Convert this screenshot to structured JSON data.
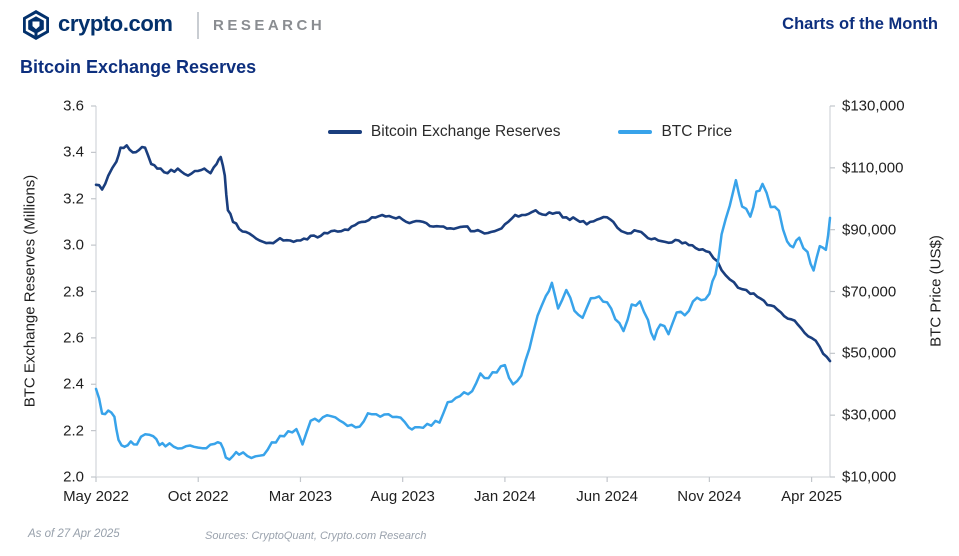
{
  "header": {
    "brand": "crypto.com",
    "brand_suffix": "RESEARCH",
    "right_label": "Charts of the Month"
  },
  "title": "Bitcoin Exchange Reserves",
  "footer": {
    "as_of": "As of 27 Apr 2025",
    "sources": "Sources: CryptoQuant, Crypto.com Research"
  },
  "colors": {
    "brand_navy": "#03316c",
    "title_blue": "#0d2f7e",
    "reserves_line": "#1a3e7e",
    "price_line": "#38a3ea",
    "axis_line": "#d6d9dd",
    "tick_text": "#1f1f1f",
    "muted_text": "#97a0ab"
  },
  "chart_data": {
    "type": "line",
    "title": "Bitcoin Exchange Reserves",
    "grid": false,
    "x_axis": {
      "unit": "months since May 2022",
      "domain_months": [
        0,
        35.9
      ],
      "tick_months_from_start": [
        0,
        5,
        10,
        15,
        20,
        25,
        30,
        35
      ],
      "tick_labels": [
        "May 2022",
        "Oct 2022",
        "Mar 2023",
        "Aug 2023",
        "Jan 2024",
        "Jun 2024",
        "Nov 2024",
        "Apr 2025"
      ]
    },
    "left_axis": {
      "label": "BTC Exchange Reserves (Millions)",
      "min": 2.0,
      "max": 3.6,
      "tick_values": [
        3.6,
        3.4,
        3.2,
        3.0,
        2.8,
        2.6,
        2.4,
        2.2,
        2.0
      ]
    },
    "right_axis": {
      "label": "BTC Price (US$)",
      "min": 10000,
      "max": 130000,
      "tick_values": [
        130000,
        110000,
        90000,
        70000,
        50000,
        30000,
        10000
      ],
      "tick_labels": [
        "$130,000",
        "$110,000",
        "$90,000",
        "$70,000",
        "$50,000",
        "$30,000",
        "$10,000"
      ]
    },
    "legend": {
      "position": "top-center",
      "items": [
        {
          "label": "Bitcoin Exchange Reserves",
          "color": "#1a3e7e"
        },
        {
          "label": "BTC Price",
          "color": "#38a3ea"
        }
      ]
    },
    "series": [
      {
        "name": "Bitcoin Exchange Reserves",
        "axis": "left",
        "unit": "millions of BTC",
        "color": "#1a3e7e",
        "x": [
          0,
          0.3,
          0.6,
          1.0,
          1.2,
          1.5,
          1.8,
          2.1,
          2.4,
          2.7,
          3.0,
          3.5,
          4.0,
          4.5,
          5.0,
          5.3,
          5.6,
          5.9,
          6.1,
          6.3,
          6.45,
          6.7,
          7.0,
          7.5,
          8.0,
          8.5,
          9.0,
          9.5,
          10.0,
          10.5,
          11.0,
          11.5,
          12.0,
          12.5,
          13.0,
          13.5,
          14.0,
          14.5,
          15.0,
          15.5,
          16.0,
          16.5,
          17.0,
          17.5,
          18.0,
          18.5,
          19.0,
          19.5,
          20.0,
          20.5,
          21.0,
          21.5,
          22.0,
          22.5,
          23.0,
          23.5,
          24.0,
          24.5,
          25.0,
          25.3,
          25.7,
          26.0,
          26.5,
          27.0,
          27.5,
          28.0,
          28.5,
          29.0,
          29.5,
          30.0,
          30.4,
          30.8,
          31.2,
          31.6,
          32.0,
          32.5,
          33.0,
          33.5,
          34.0,
          34.5,
          35.0,
          35.4,
          35.9
        ],
        "values": [
          3.26,
          3.24,
          3.3,
          3.36,
          3.42,
          3.43,
          3.4,
          3.41,
          3.42,
          3.35,
          3.33,
          3.31,
          3.33,
          3.3,
          3.32,
          3.33,
          3.31,
          3.35,
          3.38,
          3.3,
          3.15,
          3.1,
          3.07,
          3.05,
          3.02,
          3.01,
          3.03,
          3.02,
          3.02,
          3.04,
          3.04,
          3.06,
          3.06,
          3.08,
          3.1,
          3.12,
          3.13,
          3.12,
          3.11,
          3.1,
          3.1,
          3.08,
          3.08,
          3.07,
          3.08,
          3.06,
          3.05,
          3.06,
          3.09,
          3.13,
          3.13,
          3.15,
          3.13,
          3.14,
          3.12,
          3.11,
          3.09,
          3.11,
          3.12,
          3.1,
          3.06,
          3.05,
          3.06,
          3.03,
          3.02,
          3.01,
          3.02,
          3.0,
          2.98,
          2.97,
          2.93,
          2.87,
          2.84,
          2.81,
          2.79,
          2.77,
          2.74,
          2.71,
          2.68,
          2.64,
          2.6,
          2.56,
          2.5
        ]
      },
      {
        "name": "BTC Price",
        "axis": "right",
        "unit": "US$",
        "color": "#38a3ea",
        "x": [
          0,
          0.3,
          0.6,
          0.9,
          1.1,
          1.4,
          1.7,
          2.0,
          2.4,
          2.8,
          3.1,
          3.4,
          3.8,
          4.2,
          4.6,
          5.0,
          5.4,
          5.8,
          6.1,
          6.35,
          6.7,
          7.0,
          7.4,
          7.8,
          8.2,
          8.6,
          9.0,
          9.4,
          9.8,
          10.1,
          10.5,
          10.9,
          11.3,
          11.7,
          12.1,
          12.5,
          12.9,
          13.3,
          13.7,
          14.1,
          14.5,
          14.9,
          15.3,
          15.6,
          16.0,
          16.4,
          16.8,
          17.2,
          17.6,
          18.0,
          18.4,
          18.8,
          19.2,
          19.6,
          20.0,
          20.4,
          20.8,
          21.2,
          21.6,
          22.0,
          22.3,
          22.6,
          23.0,
          23.4,
          23.8,
          24.2,
          24.6,
          25.0,
          25.4,
          25.8,
          26.2,
          26.6,
          27.0,
          27.3,
          27.6,
          28.0,
          28.4,
          28.8,
          29.2,
          29.6,
          30.0,
          30.3,
          30.6,
          31.0,
          31.3,
          31.6,
          32.0,
          32.3,
          32.6,
          33.0,
          33.4,
          33.8,
          34.1,
          34.4,
          34.8,
          35.1,
          35.4,
          35.7,
          35.9
        ],
        "values": [
          38500,
          30500,
          31500,
          29500,
          22000,
          19800,
          21500,
          20500,
          23800,
          23200,
          20300,
          19900,
          19800,
          19300,
          20200,
          19500,
          19300,
          20700,
          20900,
          16300,
          16800,
          17200,
          16800,
          16700,
          17100,
          21200,
          23300,
          24800,
          25500,
          20500,
          28200,
          28000,
          30000,
          29300,
          27600,
          26900,
          26300,
          30600,
          30300,
          30200,
          29400,
          29200,
          26000,
          26100,
          25900,
          26600,
          27600,
          34200,
          35600,
          37400,
          37800,
          43500,
          42000,
          43800,
          46200,
          40000,
          42800,
          51500,
          62200,
          68500,
          72800,
          64500,
          70500,
          63800,
          61500,
          67800,
          68400,
          66500,
          61000,
          57200,
          65800,
          66800,
          60800,
          54500,
          59300,
          56200,
          63200,
          62300,
          66800,
          67200,
          69300,
          75500,
          88500,
          97800,
          106000,
          97500,
          94200,
          102300,
          104800,
          97300,
          96100,
          86200,
          84300,
          87400,
          82800,
          76800,
          84700,
          83500,
          93800
        ]
      }
    ]
  }
}
